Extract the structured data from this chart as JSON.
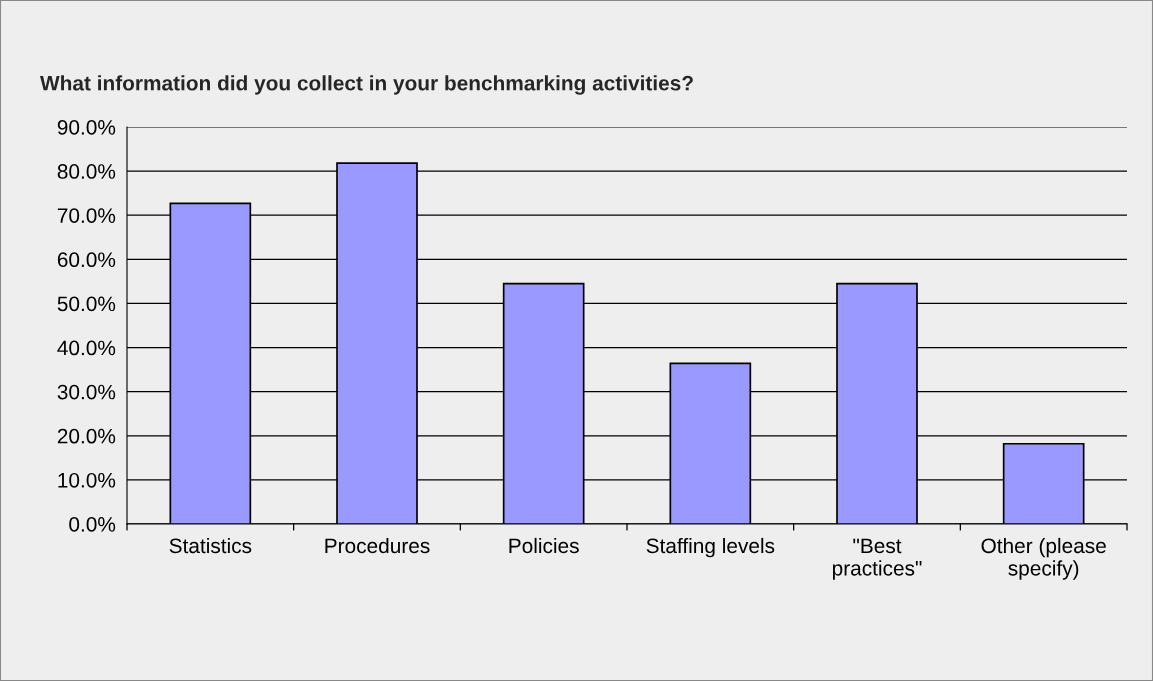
{
  "chart_data": {
    "type": "bar",
    "title": "What information did you collect in your benchmarking activities?",
    "categories": [
      "Statistics",
      "Procedures",
      "Policies",
      "Staffing levels",
      "\"Best\npractices\"",
      "Other (please\nspecify)"
    ],
    "values": [
      72.7,
      81.8,
      54.5,
      36.4,
      54.5,
      18.2
    ],
    "color": "#9999ff",
    "ylim": [
      0,
      90
    ],
    "yticks": [
      {
        "value": 0,
        "label": "0.0%"
      },
      {
        "value": 10,
        "label": "10.0%"
      },
      {
        "value": 20,
        "label": "20.0%"
      },
      {
        "value": 30,
        "label": "30.0%"
      },
      {
        "value": 40,
        "label": "40.0%"
      },
      {
        "value": 50,
        "label": "50.0%"
      },
      {
        "value": 60,
        "label": "60.0%"
      },
      {
        "value": 70,
        "label": "70.0%"
      },
      {
        "value": 80,
        "label": "80.0%"
      },
      {
        "value": 90,
        "label": "90.0%"
      }
    ],
    "grid": "y",
    "legend": false
  }
}
